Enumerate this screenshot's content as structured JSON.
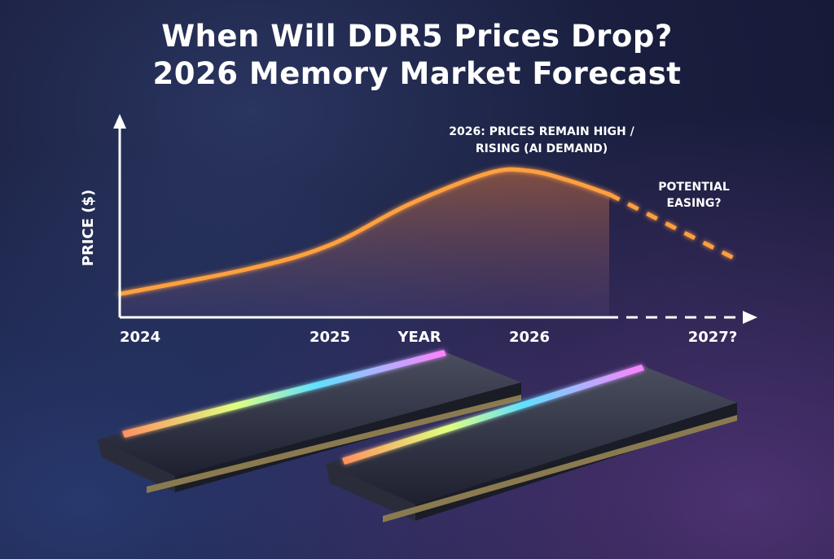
{
  "title_line1": "When Will DDR5 Prices Drop?",
  "title_line2": "2026 Memory Market Forecast",
  "colors": {
    "line": "#ffa040",
    "background": "#1a1f3f",
    "axis": "#ffffff"
  },
  "chart_data": {
    "type": "line",
    "title": "When Will DDR5 Prices Drop? 2026 Memory Market Forecast",
    "xlabel": "YEAR",
    "ylabel": "PRICE ($)",
    "x_ticks": [
      "2024",
      "2025",
      "2026",
      "2027?"
    ],
    "xlim": [
      2024,
      2027.2
    ],
    "ylim": [
      0,
      100
    ],
    "grid": false,
    "series": [
      {
        "style": "solid",
        "x": [
          2023.95,
          2024.6,
          2025.0,
          2025.4,
          2025.8,
          2026.0,
          2026.2,
          2026.4
        ],
        "y": [
          12,
          25,
          37,
          58,
          74,
          75,
          70,
          63
        ]
      },
      {
        "style": "dashed",
        "x": [
          2026.4,
          2027.05
        ],
        "y": [
          63,
          29
        ]
      }
    ],
    "annotations": [
      {
        "text_line1": "2026: PRICES REMAIN HIGH /",
        "text_line2": "RISING (AI DEMAND)"
      },
      {
        "text_line1": "POTENTIAL",
        "text_line2": "EASING?"
      }
    ]
  }
}
